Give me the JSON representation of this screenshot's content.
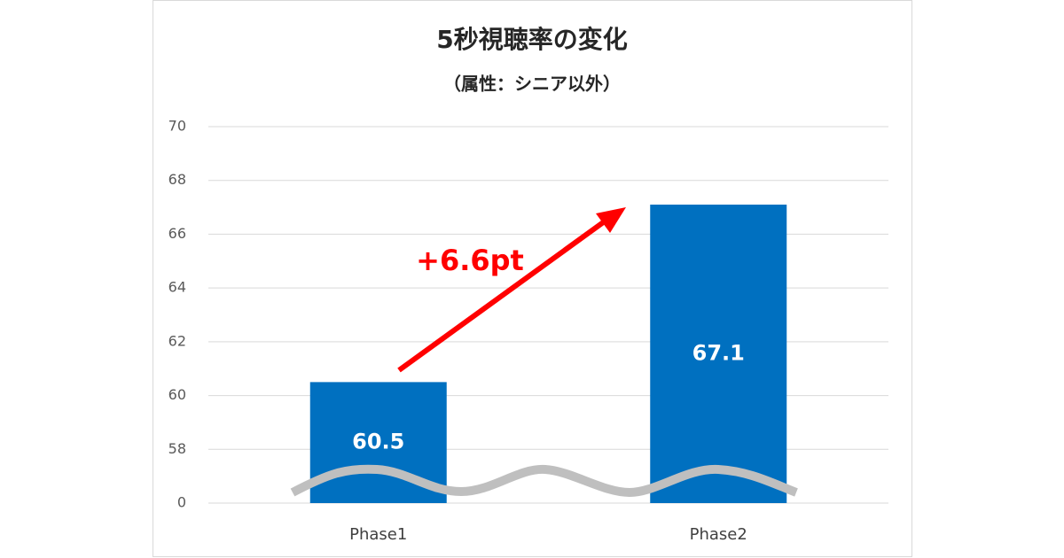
{
  "chart_data": {
    "type": "bar",
    "title": "5秒視聴率の変化",
    "subtitle": "（属性：シニア以外）",
    "categories": [
      "Phase1",
      "Phase2"
    ],
    "values": [
      60.5,
      67.1
    ],
    "color": "#0070c0",
    "ylim": [
      0,
      70
    ],
    "yticks": [
      0,
      58,
      60,
      62,
      64,
      66,
      68,
      70
    ],
    "axis_break": true,
    "grid": true,
    "annotation": "+6.6pt"
  }
}
